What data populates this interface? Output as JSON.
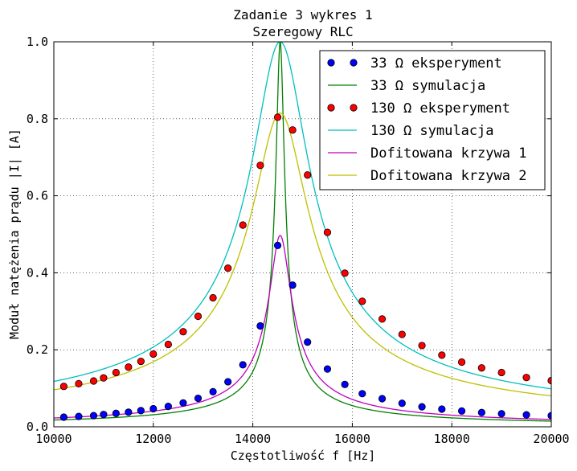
{
  "chart_data": {
    "type": "line",
    "title": "Zadanie 3 wykres 1",
    "subtitle": "Szeregowy RLC",
    "xlabel": "Częstotliwość f [Hz]",
    "ylabel": "Moduł natężenia prądu |I| [A]",
    "xlim": [
      10000,
      20000
    ],
    "ylim": [
      0.0,
      1.0
    ],
    "x_ticks": [
      10000,
      12000,
      14000,
      16000,
      18000,
      20000
    ],
    "x_tick_labels": [
      "10000",
      "12000",
      "14000",
      "16000",
      "18000",
      "20000"
    ],
    "y_ticks": [
      0.0,
      0.2,
      0.4,
      0.6,
      0.8,
      1.0
    ],
    "y_tick_labels": [
      "0.0",
      "0.2",
      "0.4",
      "0.6",
      "0.8",
      "1.0"
    ],
    "grid": true,
    "legend_position": "top-right",
    "series": [
      {
        "name": "33 Ω eksperyment",
        "kind": "markers",
        "color": "#0000ff",
        "x": [
          10200,
          10500,
          10800,
          11000,
          11250,
          11500,
          11750,
          12000,
          12300,
          12600,
          12900,
          13200,
          13500,
          13800,
          14150,
          14500,
          14800,
          15100,
          15500,
          15850,
          16200,
          16600,
          17000,
          17400,
          17800,
          18200,
          18600,
          19000,
          19500,
          20000
        ],
        "y": [
          0.025,
          0.027,
          0.029,
          0.032,
          0.035,
          0.038,
          0.042,
          0.047,
          0.053,
          0.062,
          0.074,
          0.091,
          0.117,
          0.161,
          0.262,
          0.471,
          0.368,
          0.22,
          0.15,
          0.11,
          0.086,
          0.073,
          0.061,
          0.052,
          0.046,
          0.041,
          0.037,
          0.034,
          0.031,
          0.029
        ]
      },
      {
        "name": "33 Ω symulacja",
        "kind": "line",
        "color": "#008000",
        "model": {
          "peak": 1.0,
          "f0": 14550,
          "half_width": 80
        }
      },
      {
        "name": "130 Ω eksperyment",
        "kind": "markers",
        "color": "#ff0000",
        "x": [
          10200,
          10500,
          10800,
          11000,
          11250,
          11500,
          11750,
          12000,
          12300,
          12600,
          12900,
          13200,
          13500,
          13800,
          14150,
          14500,
          14800,
          15100,
          15500,
          15850,
          16200,
          16600,
          17000,
          17400,
          17800,
          18200,
          18600,
          19000,
          19500,
          20000
        ],
        "y": [
          0.105,
          0.112,
          0.119,
          0.127,
          0.141,
          0.155,
          0.17,
          0.189,
          0.214,
          0.247,
          0.287,
          0.335,
          0.412,
          0.524,
          0.679,
          0.804,
          0.771,
          0.654,
          0.505,
          0.399,
          0.326,
          0.28,
          0.24,
          0.211,
          0.186,
          0.168,
          0.153,
          0.141,
          0.128,
          0.12
        ]
      },
      {
        "name": "130 Ω symulacja",
        "kind": "line",
        "color": "#00bfbf",
        "model": {
          "peak": 1.0,
          "f0": 14550,
          "half_width": 540
        }
      },
      {
        "name": "Dofitowana krzywa 1",
        "kind": "line",
        "color": "#bf00bf",
        "model": {
          "peak": 0.497,
          "f0": 14550,
          "half_width": 210
        }
      },
      {
        "name": "Dofitowana krzywa 2",
        "kind": "line",
        "color": "#bfbf00",
        "model": {
          "peak": 0.815,
          "f0": 14550,
          "half_width": 540
        }
      }
    ]
  }
}
